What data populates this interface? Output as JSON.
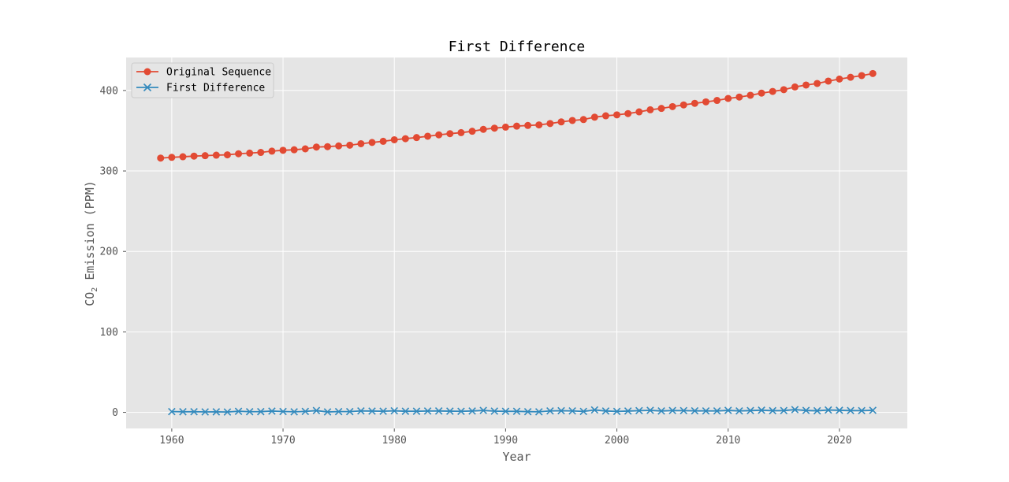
{
  "chart_data": {
    "type": "line",
    "title": "First Difference",
    "xlabel": "Year",
    "ylabel_prefix": "CO",
    "ylabel_sub": "2",
    "ylabel_suffix": " Emission (PPM)",
    "xlim": [
      1955.9,
      2026.1
    ],
    "ylim": [
      -20,
      441
    ],
    "xticks": [
      1960,
      1970,
      1980,
      1990,
      2000,
      2010,
      2020
    ],
    "yticks": [
      0,
      100,
      200,
      300,
      400
    ],
    "grid": true,
    "legend": "top-left",
    "colors": {
      "plot_bg": "#e5e5e5",
      "grid": "#ffffff",
      "original": "#e24a33",
      "difference": "#348abd"
    },
    "series": [
      {
        "name": "Original Sequence",
        "marker": "circle",
        "x": [
          1959,
          1960,
          1961,
          1962,
          1963,
          1964,
          1965,
          1966,
          1967,
          1968,
          1969,
          1970,
          1971,
          1972,
          1973,
          1974,
          1975,
          1976,
          1977,
          1978,
          1979,
          1980,
          1981,
          1982,
          1983,
          1984,
          1985,
          1986,
          1987,
          1988,
          1989,
          1990,
          1991,
          1992,
          1993,
          1994,
          1995,
          1996,
          1997,
          1998,
          1999,
          2000,
          2001,
          2002,
          2003,
          2004,
          2005,
          2006,
          2007,
          2008,
          2009,
          2010,
          2011,
          2012,
          2013,
          2014,
          2015,
          2016,
          2017,
          2018,
          2019,
          2020,
          2021,
          2022,
          2023
        ],
        "y": [
          315.98,
          316.91,
          317.64,
          318.45,
          318.99,
          319.62,
          320.04,
          321.37,
          322.18,
          323.05,
          324.62,
          325.68,
          326.32,
          327.46,
          329.68,
          330.19,
          331.13,
          332.03,
          333.84,
          335.41,
          336.84,
          338.76,
          340.12,
          341.48,
          343.15,
          344.87,
          346.35,
          347.61,
          349.31,
          351.69,
          353.2,
          354.45,
          355.7,
          356.54,
          357.21,
          358.96,
          360.97,
          362.74,
          363.88,
          366.84,
          368.54,
          369.71,
          371.32,
          373.45,
          375.98,
          377.7,
          379.98,
          382.09,
          384.02,
          385.83,
          387.64,
          390.1,
          391.85,
          394.06,
          396.74,
          398.81,
          401.01,
          404.41,
          406.76,
          408.72,
          411.65,
          414.21,
          416.41,
          418.53,
          421.08
        ]
      },
      {
        "name": "First Difference",
        "marker": "x",
        "x": [
          1960,
          1961,
          1962,
          1963,
          1964,
          1965,
          1966,
          1967,
          1968,
          1969,
          1970,
          1971,
          1972,
          1973,
          1974,
          1975,
          1976,
          1977,
          1978,
          1979,
          1980,
          1981,
          1982,
          1983,
          1984,
          1985,
          1986,
          1987,
          1988,
          1989,
          1990,
          1991,
          1992,
          1993,
          1994,
          1995,
          1996,
          1997,
          1998,
          1999,
          2000,
          2001,
          2002,
          2003,
          2004,
          2005,
          2006,
          2007,
          2008,
          2009,
          2010,
          2011,
          2012,
          2013,
          2014,
          2015,
          2016,
          2017,
          2018,
          2019,
          2020,
          2021,
          2022,
          2023
        ],
        "y": [
          0.93,
          0.73,
          0.81,
          0.54,
          0.63,
          0.42,
          1.33,
          0.81,
          0.87,
          1.57,
          1.06,
          0.64,
          1.14,
          2.22,
          0.51,
          0.94,
          0.9,
          1.81,
          1.57,
          1.43,
          1.92,
          1.36,
          1.36,
          1.67,
          1.72,
          1.48,
          1.26,
          1.7,
          2.38,
          1.51,
          1.25,
          1.25,
          0.84,
          0.67,
          1.75,
          2.01,
          1.77,
          1.14,
          2.96,
          1.7,
          1.17,
          1.61,
          2.13,
          2.53,
          1.72,
          2.28,
          2.11,
          1.93,
          1.81,
          1.81,
          2.46,
          1.75,
          2.21,
          2.68,
          2.07,
          2.2,
          3.4,
          2.35,
          1.96,
          2.93,
          2.56,
          2.2,
          2.12,
          2.55
        ]
      }
    ]
  }
}
